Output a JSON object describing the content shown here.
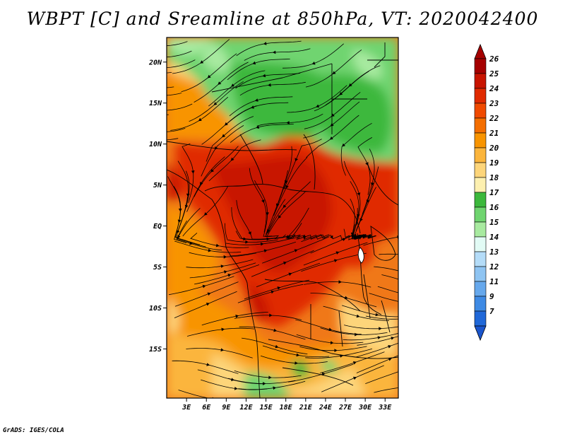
{
  "title": "WBPT [C] and Sreamline at 850hPa, VT: 2020042400",
  "credit": "GrADS: IGES/COLA",
  "map": {
    "lon_range": [
      0,
      35
    ],
    "lat_range": [
      -21,
      23
    ],
    "lat_ticks": [
      {
        "value": 20,
        "label": "20N"
      },
      {
        "value": 15,
        "label": "15N"
      },
      {
        "value": 10,
        "label": "10N"
      },
      {
        "value": 5,
        "label": "5N"
      },
      {
        "value": 0,
        "label": "EQ"
      },
      {
        "value": -5,
        "label": "5S"
      },
      {
        "value": -10,
        "label": "10S"
      },
      {
        "value": -15,
        "label": "15S"
      }
    ],
    "lon_ticks": [
      {
        "value": 3,
        "label": "3E"
      },
      {
        "value": 6,
        "label": "6E"
      },
      {
        "value": 9,
        "label": "9E"
      },
      {
        "value": 12,
        "label": "12E"
      },
      {
        "value": 15,
        "label": "15E"
      },
      {
        "value": 18,
        "label": "18E"
      },
      {
        "value": 21,
        "label": "21E"
      },
      {
        "value": 24,
        "label": "24E"
      },
      {
        "value": 27,
        "label": "27E"
      },
      {
        "value": 30,
        "label": "30E"
      },
      {
        "value": 33,
        "label": "33E"
      }
    ]
  },
  "colorbar": {
    "levels": [
      {
        "label": "26",
        "color": "#a50000"
      },
      {
        "label": "25",
        "color": "#c81400"
      },
      {
        "label": "24",
        "color": "#e02a00"
      },
      {
        "label": "23",
        "color": "#f04a00"
      },
      {
        "label": "22",
        "color": "#f46e00"
      },
      {
        "label": "21",
        "color": "#f89400"
      },
      {
        "label": "20",
        "color": "#fbb53c"
      },
      {
        "label": "19",
        "color": "#fdd57a"
      },
      {
        "label": "18",
        "color": "#fdf0b0"
      },
      {
        "label": "17",
        "color": "#3cb83c"
      },
      {
        "label": "16",
        "color": "#6fd46f"
      },
      {
        "label": "15",
        "color": "#a8eaa0"
      },
      {
        "label": "14",
        "color": "#e2fbf5"
      },
      {
        "label": "13",
        "color": "#b4dcf8"
      },
      {
        "label": "12",
        "color": "#8ec4f2"
      },
      {
        "label": "11",
        "color": "#66a8ec"
      },
      {
        "label": "9",
        "color": "#3e8ae4"
      },
      {
        "label": "7",
        "color": "#2068d8"
      }
    ],
    "bottom_color": "#1a55cc"
  }
}
